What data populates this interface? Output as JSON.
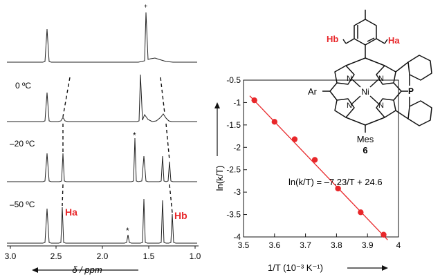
{
  "nmr": {
    "traces": [
      {
        "label": ""
      },
      {
        "label": "0 ºC"
      },
      {
        "label": "–20 ºC"
      },
      {
        "label": "–50 ºC"
      }
    ],
    "x_ticks": [
      "3.0",
      "2.5",
      "2.0",
      "1.5",
      "1.0"
    ],
    "x_label": "δ / ppm",
    "peak_labels": {
      "ha": "Ha",
      "hb": "Hb"
    },
    "asterisk": "*",
    "top_mark": "+"
  },
  "colors": {
    "accent": "#e8272a",
    "ink": "#111111",
    "trace": "#222222"
  },
  "structure": {
    "ha": "Ha",
    "hb": "Hb",
    "atoms": {
      "ni": "Ni",
      "n": "N",
      "p": "P",
      "ar": "Ar",
      "mes": "Mes"
    },
    "compound_number": "6"
  },
  "chart_data": {
    "type": "scatter",
    "x": [
      3.535,
      3.6,
      3.665,
      3.73,
      3.805,
      3.878,
      3.952
    ],
    "y": [
      -0.95,
      -1.43,
      -1.82,
      -2.28,
      -2.92,
      -3.45,
      -3.95
    ],
    "xlim": [
      3.5,
      4.0
    ],
    "ylim": [
      -4.0,
      -0.5
    ],
    "x_ticks": [
      "3.5",
      "3.6",
      "3.7",
      "3.8",
      "3.9",
      "4"
    ],
    "y_ticks": [
      "-0.5",
      "-1",
      "-1.5",
      "-2",
      "-2.5",
      "-3",
      "-3.5",
      "-4"
    ],
    "xlabel": "1/T (10⁻³ K⁻¹)",
    "ylabel": "ln(k/T)",
    "fit": {
      "slope": -7.23,
      "intercept": 24.6,
      "equation": "ln(k/T) = –7.23/T + 24.6"
    },
    "grid": false,
    "series_color": "#e8272a"
  }
}
